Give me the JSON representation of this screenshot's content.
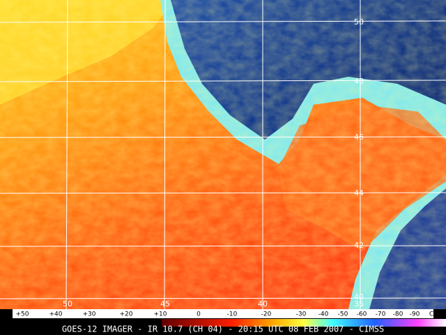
{
  "lat_labels": [
    "50",
    "48",
    "46",
    "44",
    "42",
    "40"
  ],
  "lon_labels": [
    "50",
    "45",
    "40",
    "35"
  ],
  "scale": {
    "labels": [
      "+50",
      "+40",
      "+30",
      "+20",
      "+10",
      "0",
      "-10",
      "-20",
      "-30",
      "-40",
      "-50",
      "-60",
      "-70",
      "-80",
      "-90",
      "C"
    ]
  },
  "footer": "GOES-12 IMAGER - IR 10.7 (CH 04) - 20:15 UTC 08 FEB 2007 - CIMSS"
}
